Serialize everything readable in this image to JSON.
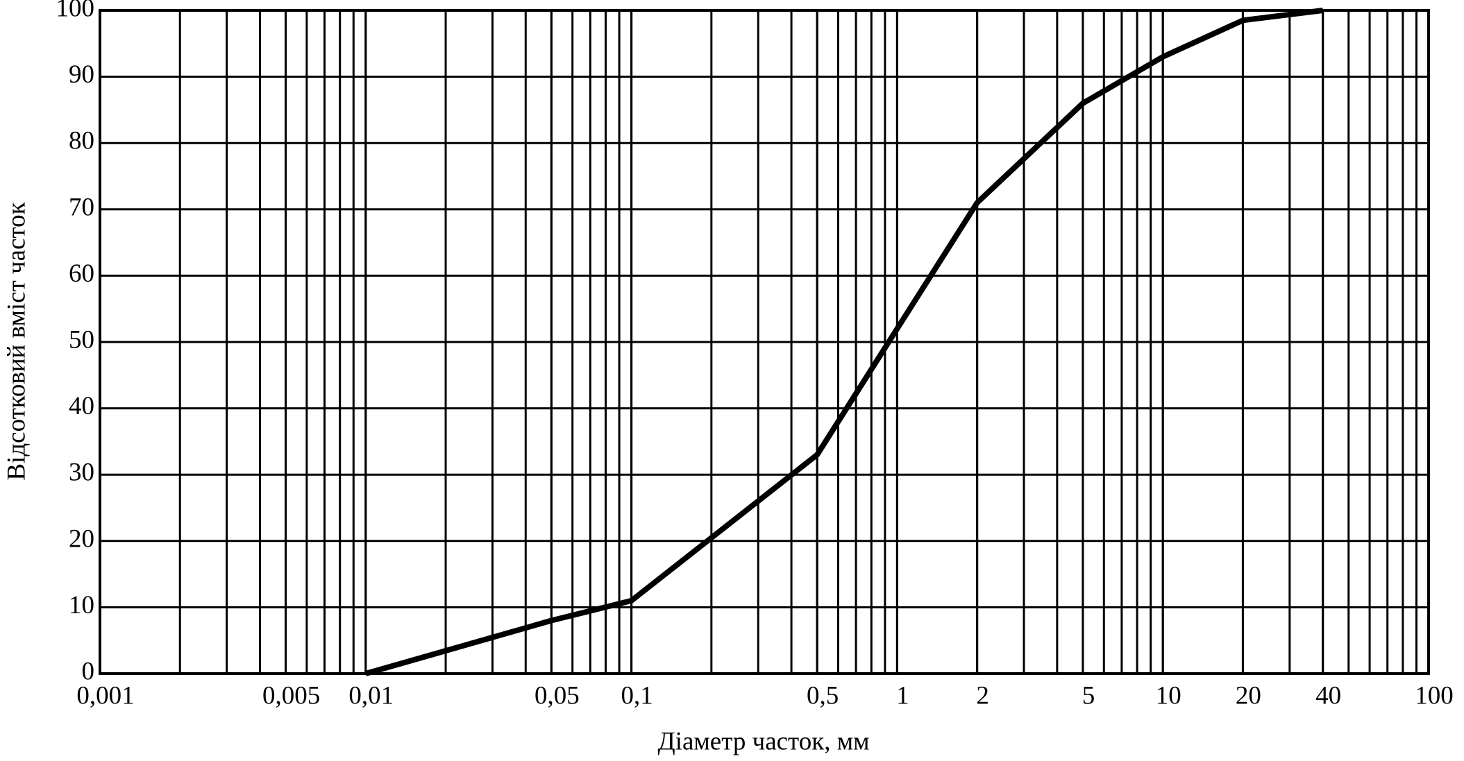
{
  "chart_data": {
    "type": "line",
    "xlabel": "Діаметр часток, мм",
    "ylabel": "Відсотковий вміст часток",
    "x": [
      0.01,
      0.05,
      0.1,
      0.5,
      1,
      2,
      5,
      10,
      20,
      40
    ],
    "values": [
      0,
      8,
      11,
      33,
      52,
      71,
      86,
      93,
      98.5,
      100
    ],
    "color": "#000000",
    "xscale": "log",
    "grid": true,
    "minor_grid": true,
    "xlim": [
      0.001,
      100
    ],
    "ylim": [
      0,
      100
    ],
    "xticks": [
      {
        "value": 0.001,
        "label": "0,001"
      },
      {
        "value": 0.005,
        "label": "0,005"
      },
      {
        "value": 0.01,
        "label": "0,01"
      },
      {
        "value": 0.05,
        "label": "0,05"
      },
      {
        "value": 0.1,
        "label": "0,1"
      },
      {
        "value": 0.5,
        "label": "0,5"
      },
      1,
      2,
      5,
      10,
      20,
      40,
      100
    ],
    "yticks": [
      0,
      10,
      20,
      30,
      40,
      50,
      60,
      70,
      80,
      90,
      100
    ]
  }
}
